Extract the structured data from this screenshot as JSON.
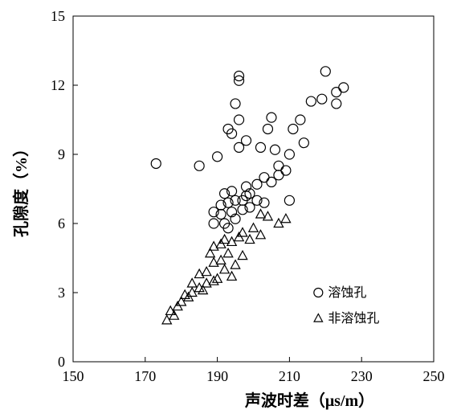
{
  "chart": {
    "type": "scatter",
    "background_color": "#ffffff",
    "axis_color": "#000000",
    "x": {
      "label": "声波时差（μs/m）",
      "lim": [
        150,
        250
      ],
      "ticks": [
        150,
        170,
        190,
        210,
        230,
        250
      ],
      "label_fontsize": 20,
      "tick_fontsize": 18
    },
    "y": {
      "label": "孔隙度（%）",
      "lim": [
        0,
        15
      ],
      "ticks": [
        0,
        3,
        6,
        9,
        12,
        15
      ],
      "label_fontsize": 20,
      "tick_fontsize": 18
    },
    "series": [
      {
        "name": "溶蚀孔",
        "marker": "circle",
        "marker_size": 6,
        "color": "#000000",
        "points": [
          [
            173,
            8.6
          ],
          [
            185,
            8.5
          ],
          [
            189,
            6.0
          ],
          [
            189,
            6.5
          ],
          [
            190,
            8.9
          ],
          [
            191,
            6.4
          ],
          [
            191,
            6.8
          ],
          [
            192,
            6.0
          ],
          [
            192,
            7.3
          ],
          [
            193,
            5.8
          ],
          [
            193,
            6.9
          ],
          [
            193,
            10.1
          ],
          [
            194,
            6.5
          ],
          [
            194,
            7.4
          ],
          [
            194,
            9.9
          ],
          [
            195,
            6.2
          ],
          [
            195,
            7.0
          ],
          [
            195,
            11.2
          ],
          [
            196,
            9.3
          ],
          [
            196,
            10.5
          ],
          [
            196,
            12.2
          ],
          [
            196,
            12.4
          ],
          [
            197,
            6.6
          ],
          [
            197,
            7.0
          ],
          [
            198,
            7.2
          ],
          [
            198,
            7.6
          ],
          [
            198,
            9.6
          ],
          [
            199,
            6.7
          ],
          [
            199,
            7.3
          ],
          [
            201,
            7.0
          ],
          [
            201,
            7.7
          ],
          [
            202,
            9.3
          ],
          [
            203,
            6.9
          ],
          [
            203,
            8.0
          ],
          [
            204,
            10.1
          ],
          [
            205,
            7.8
          ],
          [
            205,
            10.6
          ],
          [
            206,
            9.2
          ],
          [
            207,
            8.1
          ],
          [
            207,
            8.5
          ],
          [
            209,
            8.3
          ],
          [
            210,
            7.0
          ],
          [
            210,
            9.0
          ],
          [
            211,
            10.1
          ],
          [
            213,
            10.5
          ],
          [
            214,
            9.5
          ],
          [
            216,
            11.3
          ],
          [
            219,
            11.4
          ],
          [
            220,
            12.6
          ],
          [
            223,
            11.2
          ],
          [
            223,
            11.7
          ],
          [
            225,
            11.9
          ]
        ]
      },
      {
        "name": "非溶蚀孔",
        "marker": "triangle",
        "marker_size": 6,
        "color": "#000000",
        "points": [
          [
            176,
            1.8
          ],
          [
            177,
            2.2
          ],
          [
            178,
            2.0
          ],
          [
            179,
            2.4
          ],
          [
            180,
            2.6
          ],
          [
            181,
            2.9
          ],
          [
            182,
            2.8
          ],
          [
            183,
            3.0
          ],
          [
            183,
            3.4
          ],
          [
            185,
            3.2
          ],
          [
            185,
            3.8
          ],
          [
            186,
            3.1
          ],
          [
            187,
            3.4
          ],
          [
            187,
            3.9
          ],
          [
            188,
            4.7
          ],
          [
            189,
            3.5
          ],
          [
            189,
            4.3
          ],
          [
            189,
            5.0
          ],
          [
            190,
            3.6
          ],
          [
            191,
            4.4
          ],
          [
            191,
            5.1
          ],
          [
            192,
            4.0
          ],
          [
            192,
            5.3
          ],
          [
            193,
            4.7
          ],
          [
            194,
            3.7
          ],
          [
            194,
            5.2
          ],
          [
            195,
            4.2
          ],
          [
            196,
            5.4
          ],
          [
            197,
            4.6
          ],
          [
            197,
            5.6
          ],
          [
            199,
            5.3
          ],
          [
            200,
            5.8
          ],
          [
            202,
            5.5
          ],
          [
            202,
            6.4
          ],
          [
            204,
            6.3
          ],
          [
            207,
            6.0
          ],
          [
            209,
            6.2
          ]
        ]
      }
    ],
    "legend": {
      "entries": [
        "溶蚀孔",
        "非溶蚀孔"
      ],
      "fontsize": 16
    }
  }
}
